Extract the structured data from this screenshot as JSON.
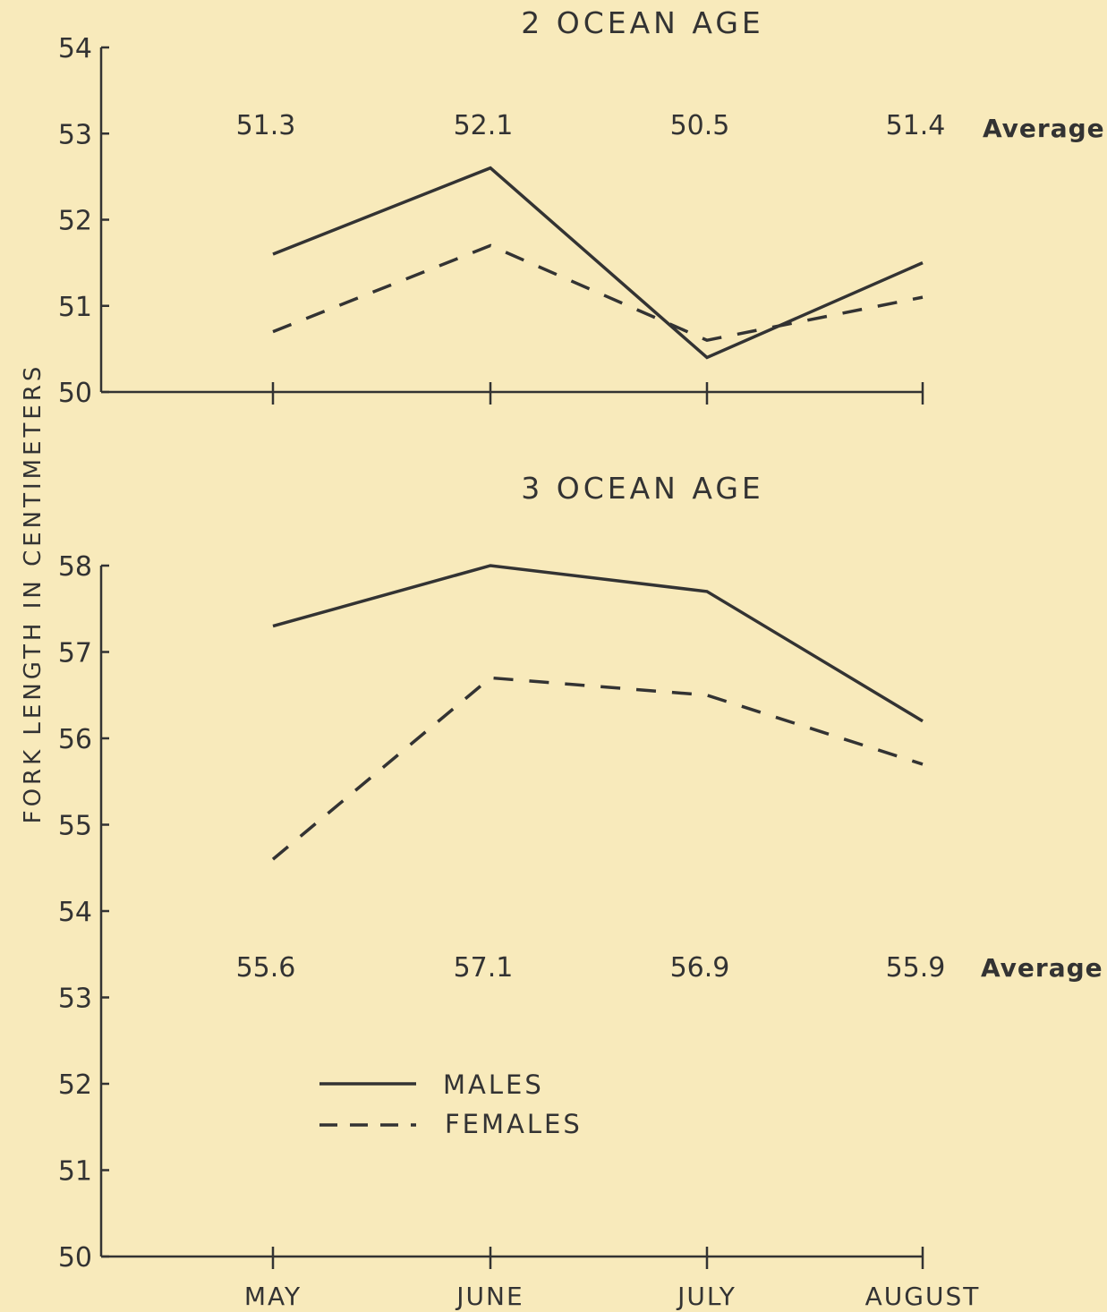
{
  "y_axis_label": "FORK LENGTH IN CENTIMETERS",
  "legend": [
    {
      "label": "MALES",
      "style": "solid"
    },
    {
      "label": "FEMALES",
      "style": "dashed"
    }
  ],
  "colors": {
    "background": "#f8eabb",
    "ink": "#333333"
  },
  "chart_data": [
    {
      "type": "line",
      "title": "2 OCEAN AGE",
      "categories": [
        "MAY",
        "JUNE",
        "JULY",
        "AUGUST"
      ],
      "ylim": [
        50,
        54
      ],
      "yticks": [
        "50",
        "51",
        "52",
        "53",
        "54"
      ],
      "series": [
        {
          "name": "MALES",
          "values": [
            51.6,
            52.6,
            50.4,
            51.5
          ]
        },
        {
          "name": "FEMALES",
          "values": [
            50.7,
            51.7,
            50.6,
            51.1
          ]
        }
      ],
      "averages": {
        "label": "Average",
        "values": [
          "51.3",
          "52.1",
          "50.5",
          "51.4"
        ]
      }
    },
    {
      "type": "line",
      "title": "3 OCEAN AGE",
      "categories": [
        "MAY",
        "JUNE",
        "JULY",
        "AUGUST"
      ],
      "ylim": [
        50,
        58
      ],
      "yticks": [
        "50",
        "51",
        "52",
        "53",
        "54",
        "55",
        "56",
        "57",
        "58"
      ],
      "series": [
        {
          "name": "MALES",
          "values": [
            57.3,
            58.0,
            57.7,
            56.2
          ]
        },
        {
          "name": "FEMALES",
          "values": [
            54.6,
            56.7,
            56.5,
            55.7
          ]
        }
      ],
      "averages": {
        "label": "Average",
        "values": [
          "55.6",
          "57.1",
          "56.9",
          "55.9"
        ]
      }
    }
  ]
}
